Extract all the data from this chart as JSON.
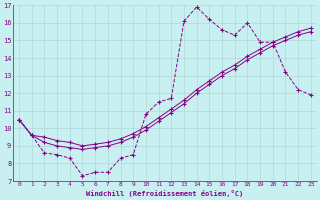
{
  "xlabel": "Windchill (Refroidissement éolien,°C)",
  "xlim": [
    -0.5,
    23.5
  ],
  "ylim": [
    7,
    17
  ],
  "xticks": [
    0,
    1,
    2,
    3,
    4,
    5,
    6,
    7,
    8,
    9,
    10,
    11,
    12,
    13,
    14,
    15,
    16,
    17,
    18,
    19,
    20,
    21,
    22,
    23
  ],
  "yticks": [
    7,
    8,
    9,
    10,
    11,
    12,
    13,
    14,
    15,
    16,
    17
  ],
  "bg_color": "#c8f0f0",
  "grid_color": "#b0d8d8",
  "line_color": "#880088",
  "line1_x": [
    0,
    1,
    2,
    3,
    4,
    5,
    6,
    7,
    8,
    9,
    10,
    11,
    12,
    13,
    14,
    15,
    16,
    17,
    18,
    19,
    20,
    21,
    22,
    23
  ],
  "line1_y": [
    10.5,
    9.6,
    8.6,
    8.5,
    8.3,
    7.3,
    7.5,
    7.5,
    8.3,
    8.5,
    10.8,
    11.5,
    11.7,
    16.1,
    16.9,
    16.2,
    15.6,
    15.3,
    16.0,
    14.9,
    14.9,
    13.2,
    12.2,
    11.9
  ],
  "line2_x": [
    0,
    1,
    2,
    3,
    4,
    5,
    6,
    7,
    8,
    9,
    10,
    11,
    12,
    13,
    14,
    15,
    16,
    17,
    18,
    19,
    20,
    21,
    22,
    23
  ],
  "line2_y": [
    10.5,
    9.6,
    9.2,
    9.0,
    8.9,
    8.8,
    8.9,
    9.0,
    9.2,
    9.5,
    9.9,
    10.4,
    10.9,
    11.4,
    12.0,
    12.5,
    13.0,
    13.4,
    13.9,
    14.3,
    14.7,
    15.0,
    15.3,
    15.5
  ],
  "line3_x": [
    0,
    1,
    2,
    3,
    4,
    5,
    6,
    7,
    8,
    9,
    10,
    11,
    12,
    13,
    14,
    15,
    16,
    17,
    18,
    19,
    20,
    21,
    22,
    23
  ],
  "line3_y": [
    10.5,
    9.6,
    9.5,
    9.3,
    9.2,
    9.0,
    9.1,
    9.2,
    9.4,
    9.7,
    10.1,
    10.6,
    11.1,
    11.6,
    12.2,
    12.7,
    13.2,
    13.6,
    14.1,
    14.5,
    14.9,
    15.2,
    15.5,
    15.7
  ]
}
